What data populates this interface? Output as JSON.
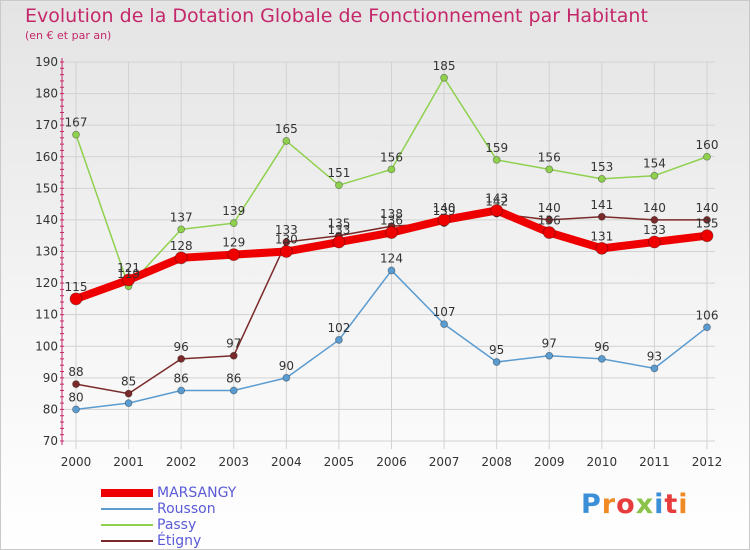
{
  "title": "Evolution de la Dotation Globale de Fonctionnement par Habitant",
  "subtitle": "(en € et par an)",
  "logo": "Proxiti",
  "chart_data": {
    "type": "line",
    "categories": [
      "2000",
      "2001",
      "2002",
      "2003",
      "2004",
      "2005",
      "2006",
      "2007",
      "2008",
      "2009",
      "2010",
      "2011",
      "2012"
    ],
    "ylim": [
      70,
      190
    ],
    "yticks": [
      70,
      80,
      90,
      100,
      110,
      120,
      130,
      140,
      150,
      160,
      170,
      180,
      190
    ],
    "grid": true,
    "legend_position": "bottom-left",
    "series": [
      {
        "name": "Rousson",
        "color": "#5a9bd0",
        "values": [
          80,
          82,
          86,
          86,
          90,
          102,
          124,
          107,
          95,
          97,
          96,
          93,
          106
        ],
        "labels": [
          "80",
          "",
          "86",
          "86",
          "90",
          "102",
          "124",
          "107",
          "95",
          "97",
          "96",
          "93",
          "106"
        ]
      },
      {
        "name": "Passy",
        "color": "#8fd14f",
        "values": [
          167,
          119,
          137,
          139,
          165,
          151,
          156,
          185,
          159,
          156,
          153,
          154,
          160
        ],
        "labels": [
          "167",
          "119",
          "137",
          "139",
          "165",
          "151",
          "156",
          "185",
          "159",
          "156",
          "153",
          "154",
          "160"
        ]
      },
      {
        "name": "Étigny",
        "color": "#7a2a2a",
        "values": [
          88,
          85,
          96,
          97,
          133,
          135,
          138,
          139,
          142,
          140,
          141,
          140,
          140
        ],
        "labels": [
          "88",
          "85",
          "96",
          "97",
          "133",
          "135",
          "138",
          "139",
          "142",
          "140",
          "141",
          "140",
          "140"
        ]
      },
      {
        "name": "MARSANGY",
        "color": "#ee0000",
        "values": [
          115,
          121,
          128,
          129,
          130,
          133,
          136,
          140,
          143,
          136,
          131,
          133,
          135
        ],
        "labels": [
          "115",
          "121",
          "128",
          "129",
          "130",
          "133",
          "136",
          "140",
          "143",
          "136",
          "131",
          "133",
          "135"
        ]
      }
    ]
  }
}
